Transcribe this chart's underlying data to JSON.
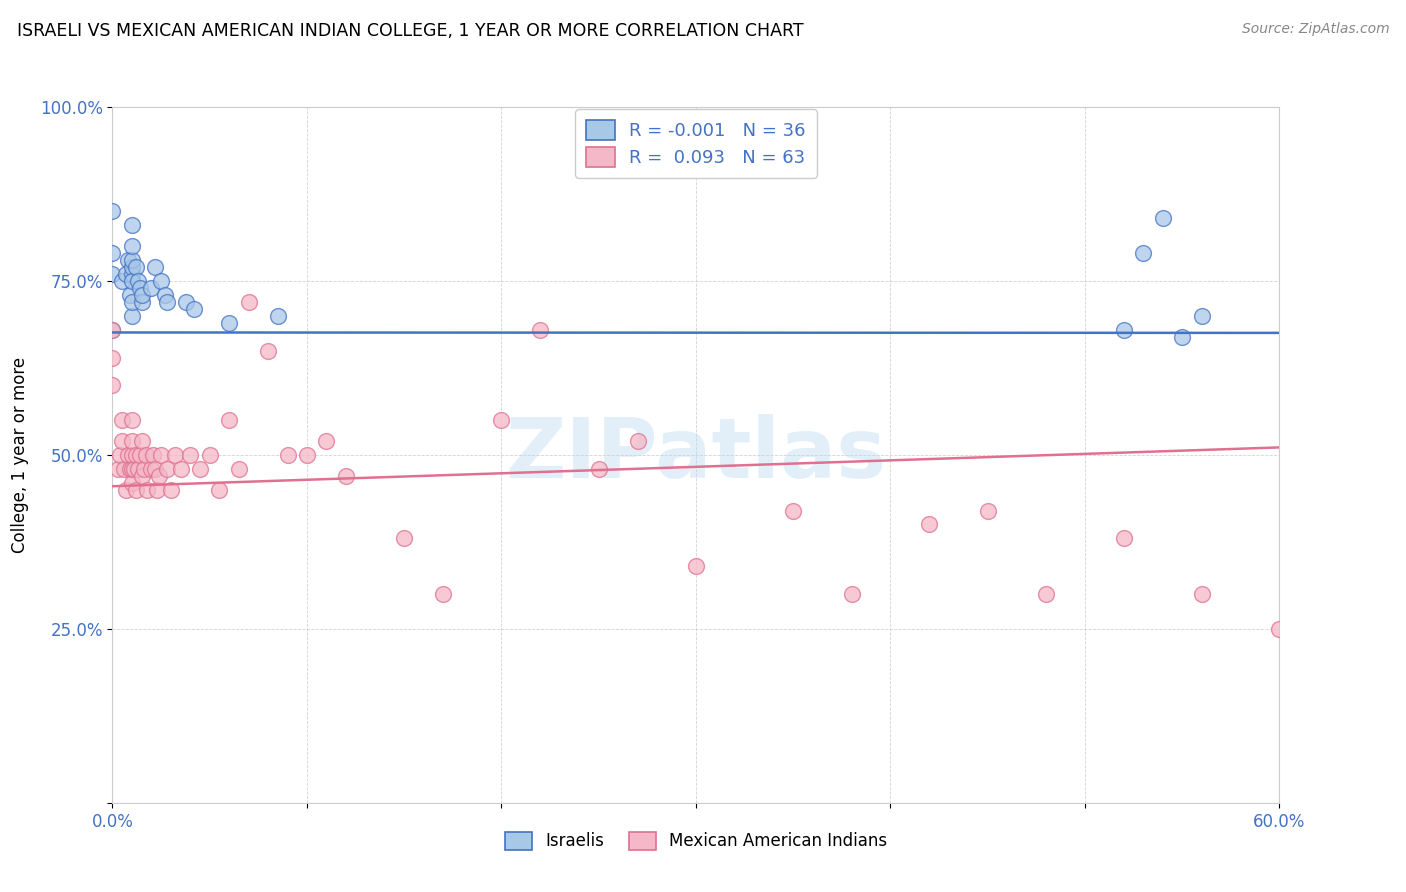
{
  "title": "ISRAELI VS MEXICAN AMERICAN INDIAN COLLEGE, 1 YEAR OR MORE CORRELATION CHART",
  "source": "Source: ZipAtlas.com",
  "ylabel": "College, 1 year or more",
  "x_min": 0.0,
  "x_max": 0.6,
  "y_min": 0.0,
  "y_max": 1.0,
  "color_blue": "#a8c8e8",
  "color_pink": "#f4b8c8",
  "line_blue": "#4472c4",
  "line_pink": "#e07090",
  "watermark": "ZIPatlas",
  "israelis_x": [
    0.0,
    0.0,
    0.0,
    0.0,
    0.005,
    0.007,
    0.008,
    0.009,
    0.01,
    0.01,
    0.01,
    0.01,
    0.01,
    0.01,
    0.01,
    0.01,
    0.012,
    0.013,
    0.014,
    0.015,
    0.015,
    0.02,
    0.022,
    0.025,
    0.027,
    0.028,
    0.038,
    0.042,
    0.06,
    0.085,
    0.52,
    0.53,
    0.54,
    0.55,
    0.56
  ],
  "israelis_y": [
    0.68,
    0.76,
    0.79,
    0.85,
    0.75,
    0.76,
    0.78,
    0.73,
    0.7,
    0.76,
    0.77,
    0.78,
    0.8,
    0.83,
    0.75,
    0.72,
    0.77,
    0.75,
    0.74,
    0.72,
    0.73,
    0.74,
    0.77,
    0.75,
    0.73,
    0.72,
    0.72,
    0.71,
    0.69,
    0.7,
    0.68,
    0.79,
    0.84,
    0.67,
    0.7
  ],
  "mexican_x": [
    0.0,
    0.0,
    0.0,
    0.003,
    0.004,
    0.005,
    0.005,
    0.006,
    0.007,
    0.008,
    0.009,
    0.01,
    0.01,
    0.01,
    0.01,
    0.01,
    0.011,
    0.012,
    0.012,
    0.013,
    0.014,
    0.015,
    0.015,
    0.016,
    0.017,
    0.018,
    0.02,
    0.021,
    0.022,
    0.023,
    0.024,
    0.025,
    0.028,
    0.03,
    0.032,
    0.035,
    0.04,
    0.045,
    0.05,
    0.055,
    0.06,
    0.065,
    0.07,
    0.08,
    0.09,
    0.1,
    0.11,
    0.12,
    0.15,
    0.17,
    0.2,
    0.22,
    0.25,
    0.27,
    0.3,
    0.35,
    0.38,
    0.42,
    0.45,
    0.48,
    0.52,
    0.56,
    0.6
  ],
  "mexican_y": [
    0.6,
    0.64,
    0.68,
    0.48,
    0.5,
    0.52,
    0.55,
    0.48,
    0.45,
    0.5,
    0.48,
    0.46,
    0.48,
    0.5,
    0.52,
    0.55,
    0.48,
    0.5,
    0.45,
    0.48,
    0.5,
    0.52,
    0.47,
    0.48,
    0.5,
    0.45,
    0.48,
    0.5,
    0.48,
    0.45,
    0.47,
    0.5,
    0.48,
    0.45,
    0.5,
    0.48,
    0.5,
    0.48,
    0.5,
    0.45,
    0.55,
    0.48,
    0.72,
    0.65,
    0.5,
    0.5,
    0.52,
    0.47,
    0.38,
    0.3,
    0.55,
    0.68,
    0.48,
    0.52,
    0.34,
    0.42,
    0.3,
    0.4,
    0.42,
    0.3,
    0.38,
    0.3,
    0.25
  ],
  "blue_line_y_intercept": 0.676,
  "blue_line_slope": -0.001,
  "pink_line_y_intercept": 0.455,
  "pink_line_slope": 0.093
}
